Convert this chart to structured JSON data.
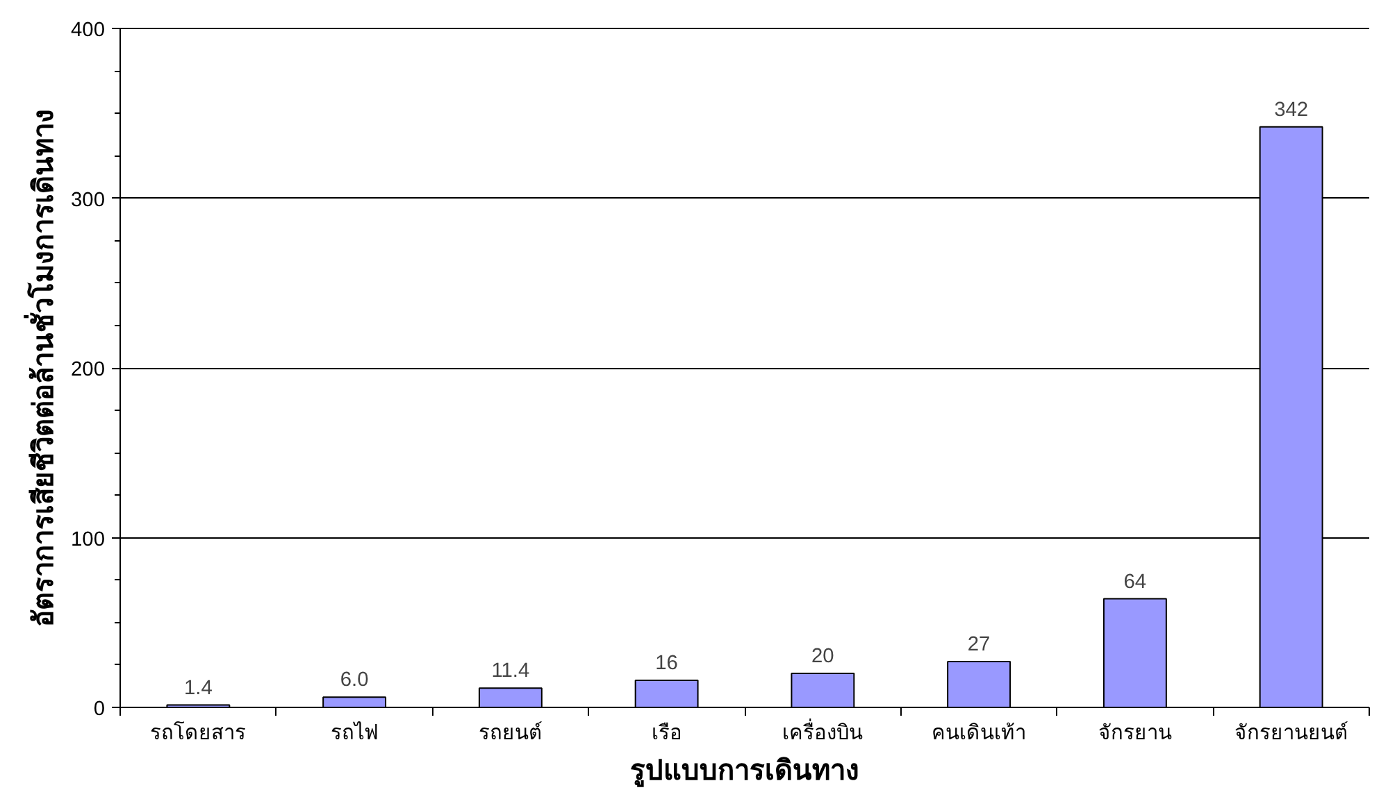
{
  "chart_data": {
    "type": "bar",
    "xlabel": "รูปแบบการเดินทาง",
    "ylabel": "อัตราการเสียชีวิตต่อล้านชั่วโมงการเดินทาง",
    "categories": [
      "รถโดยสาร",
      "รถไฟ",
      "รถยนต์",
      "เรือ",
      "เครื่องบิน",
      "คนเดินเท้า",
      "จักรยาน",
      "จักรยานยนต์"
    ],
    "values": [
      1.4,
      6.0,
      11.4,
      16,
      20,
      27,
      64,
      342
    ],
    "value_labels": [
      "1.4",
      "6.0",
      "11.4",
      "16",
      "20",
      "27",
      "64",
      "342"
    ],
    "color": "#9999ff",
    "ylim": [
      0,
      400
    ],
    "yticks": [
      0,
      100,
      200,
      300,
      400
    ],
    "grid": "y"
  }
}
